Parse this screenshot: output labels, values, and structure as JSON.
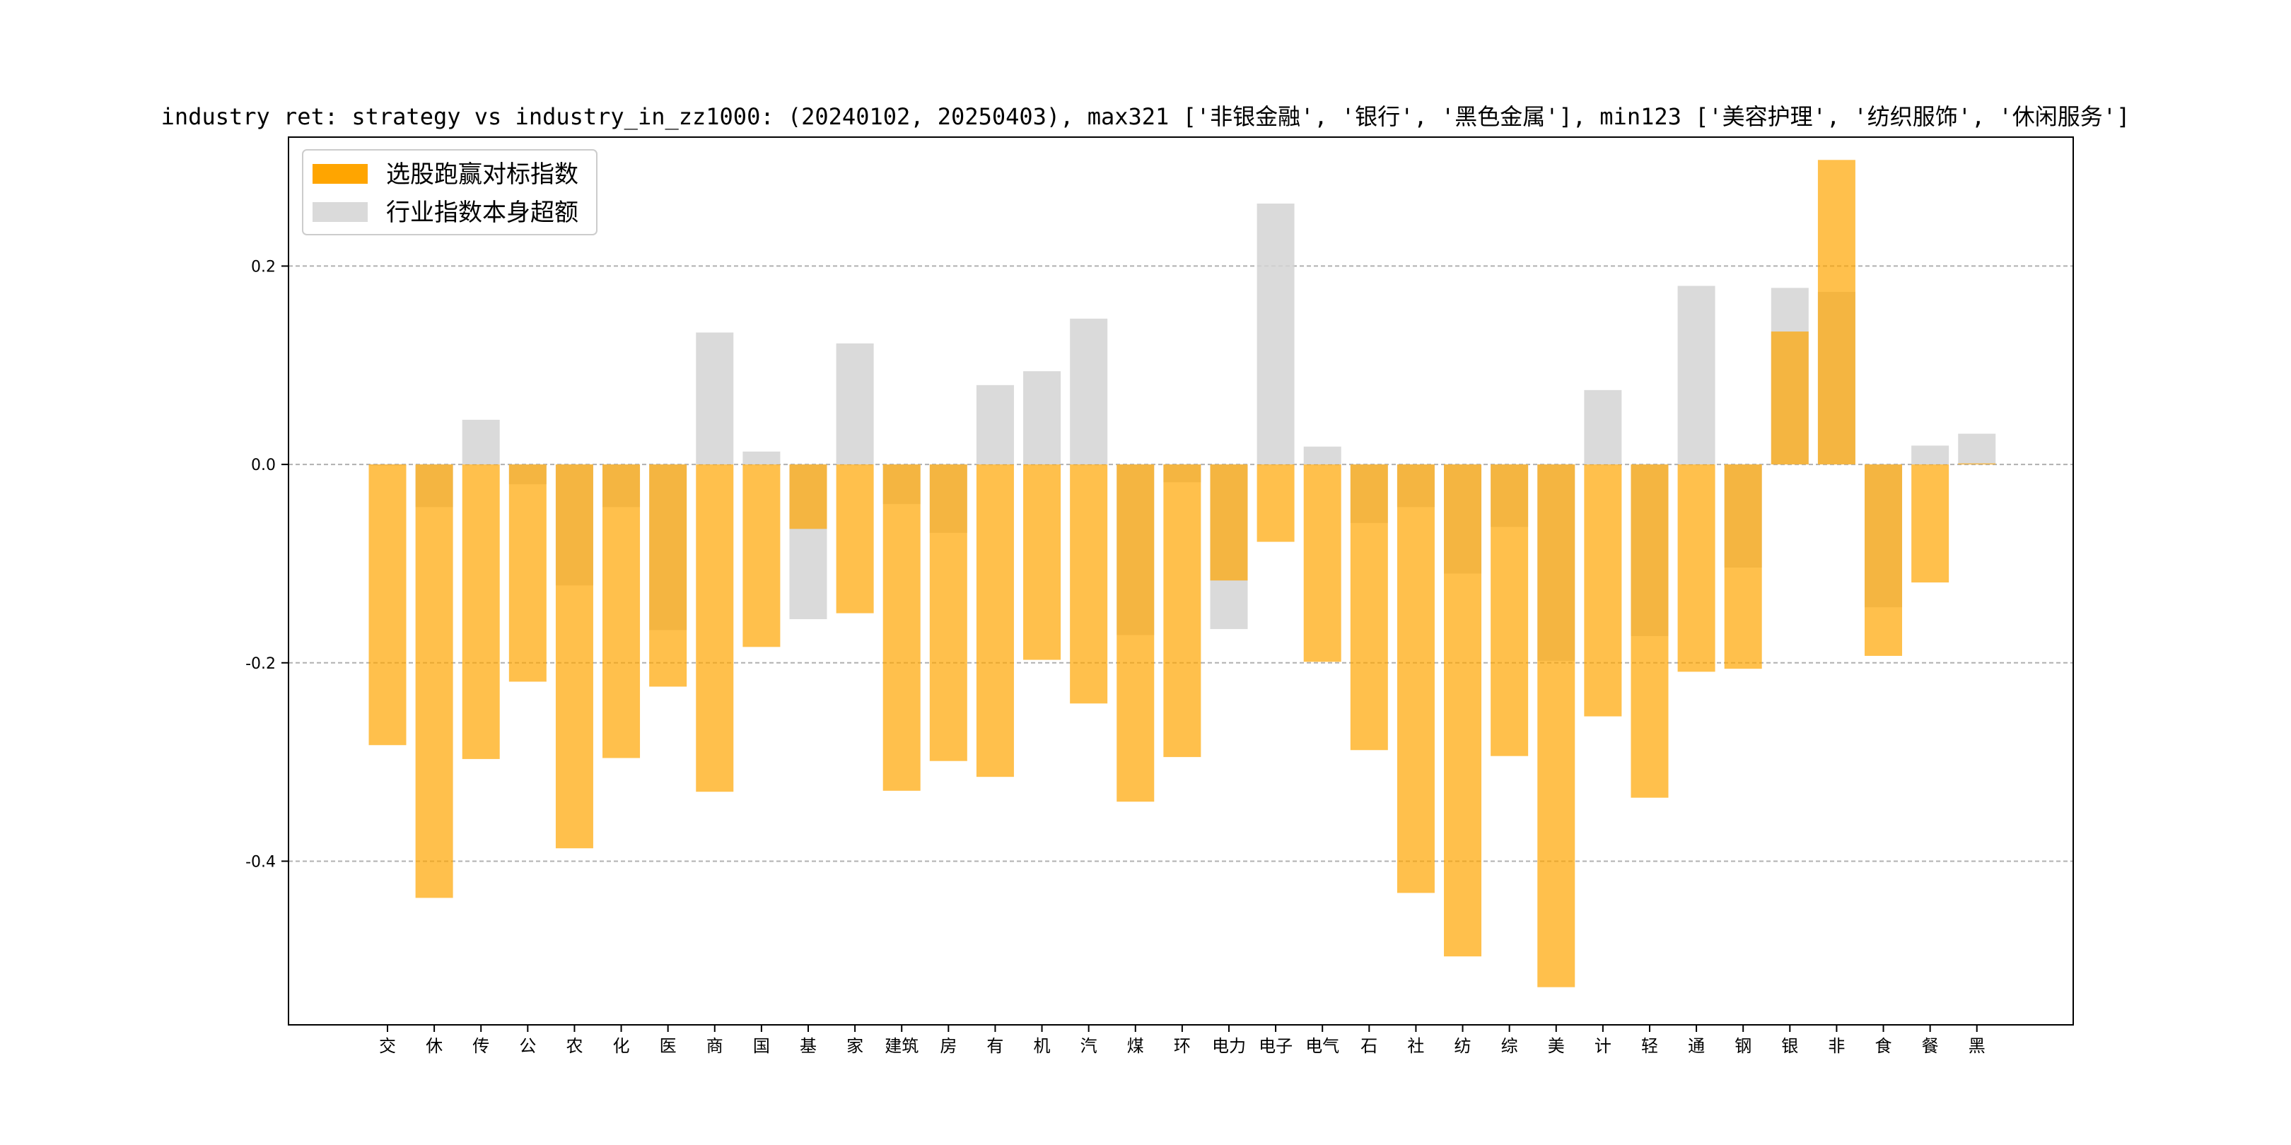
{
  "chart_data": {
    "type": "bar",
    "title": "industry ret: strategy vs industry_in_zz1000: (20240102, 20250403), max321 ['非银金融', '银行', '黑色金属'], min123 ['美容护理', '纺织服饰', '休闲服务']",
    "xlabel": "",
    "ylabel": "",
    "ylim": [
      -0.565,
      0.33
    ],
    "yticks": [
      0.2,
      0.0,
      -0.2,
      -0.4
    ],
    "ytick_labels": [
      "0.2",
      "0.0",
      "-0.2",
      "-0.4"
    ],
    "grid": "horizontal dashed",
    "legend_position": "top-left",
    "categories": [
      "交",
      "休",
      "传",
      "公",
      "农",
      "化",
      "医",
      "商",
      "国",
      "基",
      "家",
      "建筑",
      "房",
      "有",
      "机",
      "汽",
      "煤",
      "环",
      "电力",
      "电子",
      "电气",
      "石",
      "社",
      "纺",
      "综",
      "美",
      "计",
      "轻",
      "通",
      "钢",
      "银",
      "非",
      "食",
      "餐",
      "黑"
    ],
    "series": [
      {
        "name": "选股跑赢对标指数",
        "color": "#FFA500",
        "values": [
          -0.283,
          -0.437,
          -0.297,
          -0.219,
          -0.387,
          -0.296,
          -0.224,
          -0.33,
          -0.184,
          -0.065,
          -0.15,
          -0.329,
          -0.299,
          -0.315,
          -0.197,
          -0.241,
          -0.34,
          -0.295,
          -0.117,
          -0.078,
          -0.199,
          -0.288,
          -0.432,
          -0.496,
          -0.294,
          -0.527,
          -0.254,
          -0.336,
          -0.209,
          -0.206,
          0.134,
          0.307,
          -0.193,
          -0.119,
          0.001
        ]
      },
      {
        "name": "行业指数本身超额",
        "color": "#D3D3D3",
        "values": [
          -0.001,
          -0.043,
          0.045,
          -0.02,
          -0.122,
          -0.043,
          -0.167,
          0.133,
          0.013,
          -0.156,
          0.122,
          -0.04,
          -0.069,
          0.08,
          0.094,
          0.147,
          -0.172,
          -0.018,
          -0.166,
          0.263,
          0.018,
          -0.059,
          -0.043,
          -0.11,
          -0.063,
          -0.198,
          0.075,
          -0.173,
          0.18,
          -0.104,
          0.178,
          0.174,
          -0.144,
          0.019,
          0.031
        ]
      }
    ]
  }
}
